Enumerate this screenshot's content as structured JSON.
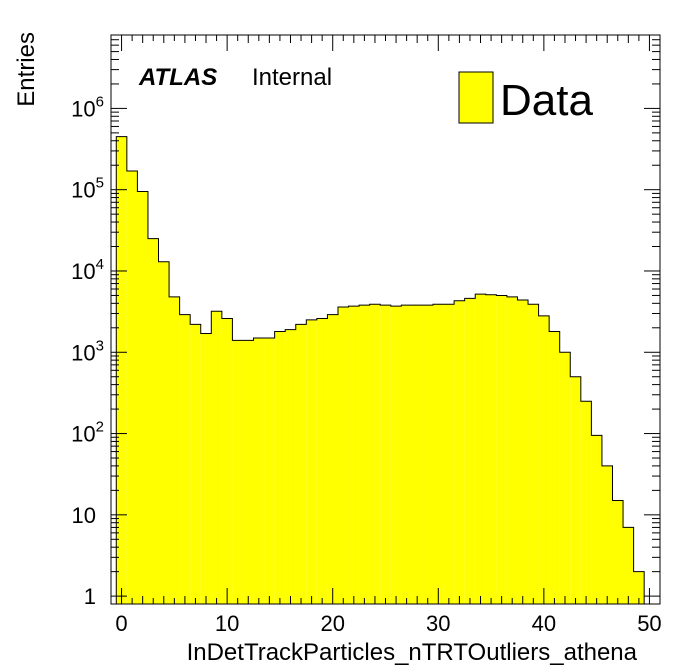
{
  "chart_data": {
    "type": "bar",
    "style": "histogram",
    "fill_color": "#ffff00",
    "edge_color": "#000000",
    "xlabel": "InDetTrackParticles_nTRTOutliers_athena",
    "ylabel": "Entries",
    "xlim": [
      -1,
      51
    ],
    "ylim": [
      0.8,
      8000000
    ],
    "yscale": "log",
    "grid": false,
    "experiment_label": "ATLAS",
    "status_label": "Internal",
    "legend": {
      "entries": [
        "Data"
      ],
      "placement": "top-right"
    },
    "x_ticks": [
      {
        "value": 0,
        "label": "0"
      },
      {
        "value": 10,
        "label": "10"
      },
      {
        "value": 20,
        "label": "20"
      },
      {
        "value": 30,
        "label": "30"
      },
      {
        "value": 40,
        "label": "40"
      },
      {
        "value": 50,
        "label": "50"
      }
    ],
    "y_ticks": [
      {
        "value": 1,
        "label": "1"
      },
      {
        "value": 10,
        "label": "10"
      },
      {
        "value": 100,
        "label": "10",
        "exp": "2"
      },
      {
        "value": 1000,
        "label": "10",
        "exp": "3"
      },
      {
        "value": 10000,
        "label": "10",
        "exp": "4"
      },
      {
        "value": 100000,
        "label": "10",
        "exp": "5"
      },
      {
        "value": 1000000,
        "label": "10",
        "exp": "6"
      }
    ],
    "bin_edges": [
      -0.5,
      0.5,
      1.5,
      2.5,
      3.5,
      4.5,
      5.5,
      6.5,
      7.5,
      8.5,
      9.5,
      10.5,
      11.5,
      12.5,
      13.5,
      14.5,
      15.5,
      16.5,
      17.5,
      18.5,
      19.5,
      20.5,
      21.5,
      22.5,
      23.5,
      24.5,
      25.5,
      26.5,
      27.5,
      28.5,
      29.5,
      30.5,
      31.5,
      32.5,
      33.5,
      34.5,
      35.5,
      36.5,
      37.5,
      38.5,
      39.5,
      40.5,
      41.5,
      42.5,
      43.5,
      44.5,
      45.5,
      46.5,
      47.5,
      48.5,
      49.5
    ],
    "values": [
      450000,
      170000,
      95000,
      25000,
      13000,
      4800,
      2900,
      2200,
      1700,
      3200,
      2600,
      1400,
      1400,
      1500,
      1500,
      1800,
      1900,
      2200,
      2500,
      2600,
      2900,
      3600,
      3700,
      3800,
      3900,
      3800,
      3700,
      3800,
      3800,
      3800,
      3900,
      3900,
      4300,
      4600,
      5200,
      5100,
      5000,
      4800,
      4400,
      3900,
      2800,
      1800,
      1000,
      500,
      250,
      95,
      40,
      15,
      7,
      2
    ]
  }
}
